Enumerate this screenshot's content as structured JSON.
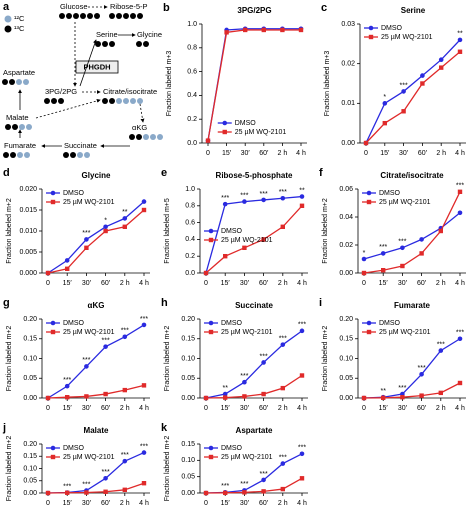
{
  "diagram": {
    "panel": "a",
    "legend": [
      "¹²C",
      "¹³C"
    ],
    "nodes": [
      "Glucose",
      "Ribose-5-P",
      "Serine",
      "Glycine",
      "PHGDH",
      "Aspartate",
      "3PG/2PG",
      "Malate",
      "Citrate/isocitrate",
      "Fumarate",
      "Succinate",
      "αKG"
    ]
  },
  "chart_data": [
    {
      "type": "line",
      "panel": "b",
      "title": "3PG/2PG",
      "ylabel": "Fraction labeled m+3",
      "categories": [
        "0",
        "15′",
        "30′",
        "60′",
        "2 h",
        "4 h"
      ],
      "series": [
        {
          "name": "DMSO",
          "color": "#2a2ae0",
          "marker": "circle",
          "values": [
            0.02,
            0.95,
            0.96,
            0.96,
            0.96,
            0.96
          ]
        },
        {
          "name": "25 µM WQ-2101",
          "color": "#e02a2a",
          "marker": "square",
          "values": [
            0.02,
            0.93,
            0.95,
            0.95,
            0.95,
            0.95
          ]
        }
      ],
      "ylim": [
        0,
        1.0
      ],
      "yticks": [
        {
          "value": 0,
          "label": "0.0"
        },
        {
          "value": 0.2,
          "label": "0.2"
        },
        {
          "value": 0.4,
          "label": "0.4"
        },
        {
          "value": 0.6,
          "label": "0.6"
        },
        {
          "value": 0.8,
          "label": "0.8"
        },
        {
          "value": 1.0,
          "label": "1.0"
        }
      ],
      "legend": "bottom"
    },
    {
      "type": "line",
      "panel": "c",
      "title": "Serine",
      "ylabel": "Fraction labeled m+3",
      "categories": [
        "0",
        "15′",
        "30′",
        "60′",
        "2 h",
        "4 h"
      ],
      "series": [
        {
          "name": "DMSO",
          "color": "#2a2ae0",
          "marker": "circle",
          "values": [
            0,
            0.01,
            0.013,
            0.017,
            0.021,
            0.026
          ]
        },
        {
          "name": "25 µM WQ-2101",
          "color": "#e02a2a",
          "marker": "square",
          "values": [
            0,
            0.005,
            0.008,
            0.015,
            0.019,
            0.023
          ]
        }
      ],
      "ylim": [
        0,
        0.03
      ],
      "yticks": [
        {
          "value": 0,
          "label": "0.00"
        },
        {
          "value": 0.01,
          "label": "0.01"
        },
        {
          "value": 0.02,
          "label": "0.02"
        },
        {
          "value": 0.03,
          "label": "0.03"
        }
      ],
      "sig": [
        null,
        "*",
        "***",
        null,
        null,
        "**"
      ],
      "legend": "top-left"
    },
    {
      "type": "line",
      "panel": "d",
      "title": "Glycine",
      "ylabel": "Fraction labeled m+2",
      "categories": [
        "0",
        "15′",
        "30′",
        "60′",
        "2 h",
        "4 h"
      ],
      "series": [
        {
          "name": "DMSO",
          "color": "#2a2ae0",
          "marker": "circle",
          "values": [
            0,
            0.003,
            0.008,
            0.011,
            0.013,
            0.017
          ]
        },
        {
          "name": "25 µM WQ-2101",
          "color": "#e02a2a",
          "marker": "square",
          "values": [
            0,
            0.001,
            0.006,
            0.01,
            0.011,
            0.015
          ]
        }
      ],
      "ylim": [
        0,
        0.02
      ],
      "yticks": [
        {
          "value": 0,
          "label": "0.000"
        },
        {
          "value": 0.005,
          "label": "0.005"
        },
        {
          "value": 0.01,
          "label": "0.010"
        },
        {
          "value": 0.015,
          "label": "0.015"
        },
        {
          "value": 0.02,
          "label": "0.020"
        }
      ],
      "sig": [
        null,
        null,
        "***",
        "*",
        "**",
        null
      ],
      "legend": "top-left"
    },
    {
      "type": "line",
      "panel": "e",
      "title": "Ribose-5-phosphate",
      "ylabel": "Fraction labeled m+5",
      "categories": [
        "0",
        "15′",
        "30′",
        "60′",
        "2 h",
        "4 h"
      ],
      "series": [
        {
          "name": "DMSO",
          "color": "#2a2ae0",
          "marker": "circle",
          "values": [
            0,
            0.82,
            0.85,
            0.87,
            0.89,
            0.91
          ]
        },
        {
          "name": "25 µM WQ-2101",
          "color": "#e02a2a",
          "marker": "square",
          "values": [
            0,
            0.2,
            0.3,
            0.4,
            0.55,
            0.8
          ]
        }
      ],
      "ylim": [
        0,
        1.0
      ],
      "yticks": [
        {
          "value": 0,
          "label": "0.0"
        },
        {
          "value": 0.2,
          "label": "0.2"
        },
        {
          "value": 0.4,
          "label": "0.4"
        },
        {
          "value": 0.6,
          "label": "0.6"
        },
        {
          "value": 0.8,
          "label": "0.8"
        },
        {
          "value": 1.0,
          "label": "1.0"
        }
      ],
      "sig": [
        null,
        "***",
        "***",
        "***",
        "***",
        "**"
      ],
      "legend": "middle-left"
    },
    {
      "type": "line",
      "panel": "f",
      "title": "Citrate/isocitrate",
      "ylabel": "Fraction labeled m+2",
      "categories": [
        "0",
        "15′",
        "30′",
        "60′",
        "2 h",
        "4 h"
      ],
      "series": [
        {
          "name": "DMSO",
          "color": "#2a2ae0",
          "marker": "circle",
          "values": [
            0.01,
            0.014,
            0.018,
            0.024,
            0.032,
            0.043
          ]
        },
        {
          "name": "25 µM WQ-2101",
          "color": "#e02a2a",
          "marker": "square",
          "values": [
            0,
            0.002,
            0.005,
            0.014,
            0.03,
            0.058
          ]
        }
      ],
      "ylim": [
        0,
        0.06
      ],
      "yticks": [
        {
          "value": 0,
          "label": "0.00"
        },
        {
          "value": 0.02,
          "label": "0.02"
        },
        {
          "value": 0.04,
          "label": "0.04"
        },
        {
          "value": 0.06,
          "label": "0.06"
        }
      ],
      "sig": [
        "*",
        "***",
        "***",
        null,
        null,
        "***"
      ],
      "legend": "top-left"
    },
    {
      "type": "line",
      "panel": "g",
      "title": "αKG",
      "ylabel": "Fraction labeled m+2",
      "categories": [
        "0",
        "15′",
        "30′",
        "60′",
        "2 h",
        "4 h"
      ],
      "series": [
        {
          "name": "DMSO",
          "color": "#2a2ae0",
          "marker": "circle",
          "values": [
            0,
            0.03,
            0.08,
            0.13,
            0.155,
            0.185
          ]
        },
        {
          "name": "25 µM WQ-2101",
          "color": "#e02a2a",
          "marker": "square",
          "values": [
            0,
            0.002,
            0.004,
            0.01,
            0.02,
            0.032
          ]
        }
      ],
      "ylim": [
        0,
        0.2
      ],
      "yticks": [
        {
          "value": 0,
          "label": "0.00"
        },
        {
          "value": 0.05,
          "label": "0.05"
        },
        {
          "value": 0.1,
          "label": "0.10"
        },
        {
          "value": 0.15,
          "label": "0.15"
        },
        {
          "value": 0.2,
          "label": "0.20"
        }
      ],
      "sig": [
        null,
        "***",
        "***",
        "***",
        "***",
        "***"
      ],
      "legend": "top-left"
    },
    {
      "type": "line",
      "panel": "h",
      "title": "Succinate",
      "ylabel": "Fraction labeled m+2",
      "categories": [
        "0",
        "15′",
        "30′",
        "60′",
        "2 h",
        "4 h"
      ],
      "series": [
        {
          "name": "DMSO",
          "color": "#2a2ae0",
          "marker": "circle",
          "values": [
            0,
            0.01,
            0.04,
            0.09,
            0.135,
            0.17
          ]
        },
        {
          "name": "25 µM WQ-2101",
          "color": "#e02a2a",
          "marker": "square",
          "values": [
            0,
            0.001,
            0.004,
            0.01,
            0.025,
            0.057
          ]
        }
      ],
      "ylim": [
        0,
        0.2
      ],
      "yticks": [
        {
          "value": 0,
          "label": "0.00"
        },
        {
          "value": 0.05,
          "label": "0.05"
        },
        {
          "value": 0.1,
          "label": "0.10"
        },
        {
          "value": 0.15,
          "label": "0.15"
        },
        {
          "value": 0.2,
          "label": "0.20"
        }
      ],
      "sig": [
        null,
        "**",
        "***",
        "***",
        "***",
        "***"
      ],
      "legend": "top-left"
    },
    {
      "type": "line",
      "panel": "i",
      "title": "Fumarate",
      "ylabel": "Fraction labeled m+2",
      "categories": [
        "0",
        "15′",
        "30′",
        "60′",
        "2 h",
        "4 h"
      ],
      "series": [
        {
          "name": "DMSO",
          "color": "#2a2ae0",
          "marker": "circle",
          "values": [
            0,
            0.002,
            0.01,
            0.06,
            0.12,
            0.15
          ]
        },
        {
          "name": "25 µM WQ-2101",
          "color": "#e02a2a",
          "marker": "square",
          "values": [
            0,
            0.0005,
            0.002,
            0.006,
            0.013,
            0.038
          ]
        }
      ],
      "ylim": [
        0,
        0.2
      ],
      "yticks": [
        {
          "value": 0,
          "label": "0.00"
        },
        {
          "value": 0.05,
          "label": "0.05"
        },
        {
          "value": 0.1,
          "label": "0.10"
        },
        {
          "value": 0.15,
          "label": "0.15"
        },
        {
          "value": 0.2,
          "label": "0.20"
        }
      ],
      "sig": [
        null,
        "**",
        "***",
        "***",
        "***",
        "***"
      ],
      "legend": "top-left"
    },
    {
      "type": "line",
      "panel": "j",
      "title": "Malate",
      "ylabel": "Fraction labeled m+2",
      "categories": [
        "0",
        "15′",
        "30′",
        "60′",
        "2 h",
        "4 h"
      ],
      "series": [
        {
          "name": "DMSO",
          "color": "#2a2ae0",
          "marker": "circle",
          "values": [
            0,
            0.002,
            0.01,
            0.06,
            0.13,
            0.165
          ]
        },
        {
          "name": "25 µM WQ-2101",
          "color": "#e02a2a",
          "marker": "square",
          "values": [
            0,
            0.001,
            0.002,
            0.005,
            0.013,
            0.04
          ]
        }
      ],
      "ylim": [
        0,
        0.2
      ],
      "yticks": [
        {
          "value": 0,
          "label": "0.00"
        },
        {
          "value": 0.05,
          "label": "0.05"
        },
        {
          "value": 0.1,
          "label": "0.10"
        },
        {
          "value": 0.15,
          "label": "0.15"
        },
        {
          "value": 0.2,
          "label": "0.20"
        }
      ],
      "sig": [
        null,
        "***",
        "***",
        "***",
        "***",
        "***"
      ],
      "legend": "top-left"
    },
    {
      "type": "line",
      "panel": "k",
      "title": "Aspartate",
      "ylabel": "Fraction labeled m+2",
      "categories": [
        "0",
        "15′",
        "30′",
        "60′",
        "2 h",
        "4 h"
      ],
      "series": [
        {
          "name": "DMSO",
          "color": "#2a2ae0",
          "marker": "circle",
          "values": [
            0,
            0.002,
            0.008,
            0.04,
            0.09,
            0.12
          ]
        },
        {
          "name": "25 µM WQ-2101",
          "color": "#e02a2a",
          "marker": "square",
          "values": [
            0,
            0.0005,
            0.002,
            0.005,
            0.012,
            0.045
          ]
        }
      ],
      "ylim": [
        0,
        0.15
      ],
      "yticks": [
        {
          "value": 0,
          "label": "0.00"
        },
        {
          "value": 0.05,
          "label": "0.05"
        },
        {
          "value": 0.1,
          "label": "0.10"
        },
        {
          "value": 0.15,
          "label": "0.15"
        }
      ],
      "sig": [
        null,
        "***",
        "***",
        "***",
        "***",
        "***"
      ],
      "legend": "top-left"
    }
  ]
}
